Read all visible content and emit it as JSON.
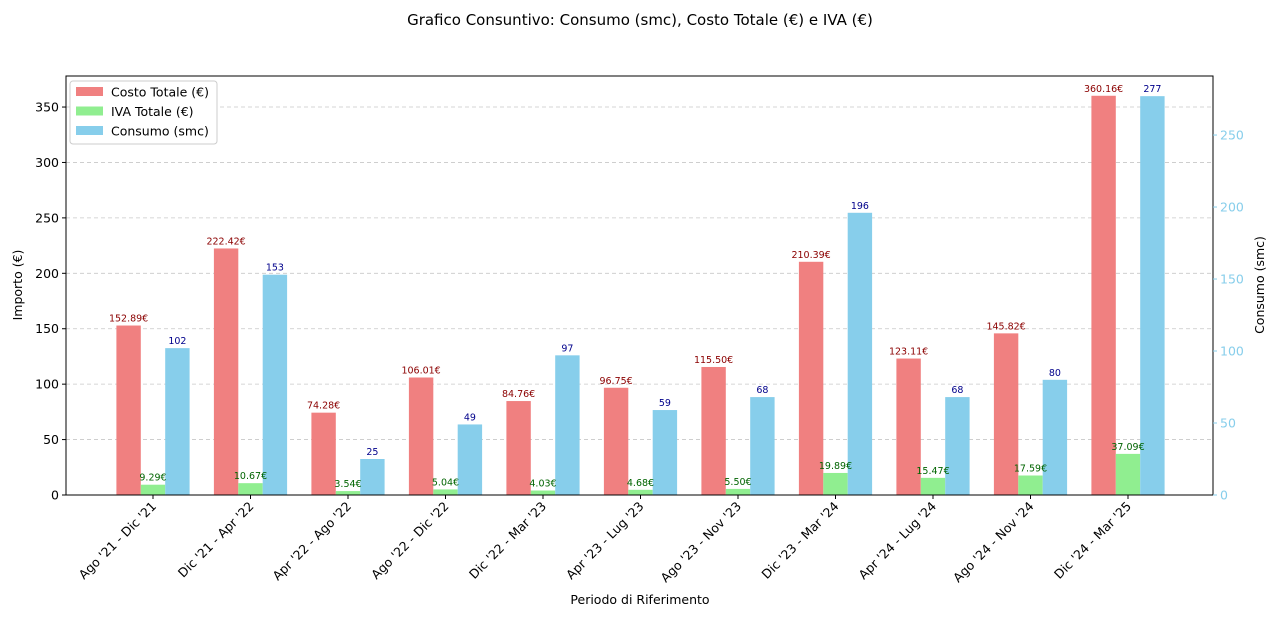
{
  "chart_data": {
    "type": "bar",
    "title": "Grafico Consuntivo: Consumo (smc), Costo Totale (€) e IVA (€)",
    "xlabel": "Periodo di Riferimento",
    "ylabel": "Importo (€)",
    "ylabel_right": "Consumo (smc)",
    "ylim": [
      0,
      378
    ],
    "ylim_right": [
      0,
      291
    ],
    "yticks": [
      0,
      50,
      100,
      150,
      200,
      250,
      300,
      350
    ],
    "yticks_right": [
      0,
      50,
      100,
      150,
      200,
      250
    ],
    "grid": "horizontal-dashed",
    "legend_position": "top-left",
    "categories": [
      "Ago '21 - Dic '21",
      "Dic '21 - Apr '22",
      "Apr '22 - Ago '22",
      "Ago '22 - Dic '22",
      "Dic '22 - Mar '23",
      "Apr '23 - Lug '23",
      "Ago '23 - Nov '23",
      "Dic '23 - Mar '24",
      "Apr '24 - Lug '24",
      "Ago '24 - Nov '24",
      "Dic '24 - Mar '25"
    ],
    "series": [
      {
        "name": "Costo Totale (€)",
        "axis": "left",
        "color": "#f08080",
        "label_color": "#8b0000",
        "values": [
          152.89,
          222.42,
          74.28,
          106.01,
          84.76,
          96.75,
          115.5,
          210.39,
          123.11,
          145.82,
          360.16
        ],
        "labels": [
          "152.89€",
          "222.42€",
          "74.28€",
          "106.01€",
          "84.76€",
          "96.75€",
          "115.50€",
          "210.39€",
          "123.11€",
          "145.82€",
          "360.16€"
        ]
      },
      {
        "name": "IVA Totale (€)",
        "axis": "left",
        "color": "#90ee90",
        "label_color": "#006400",
        "values": [
          9.29,
          10.67,
          3.54,
          5.04,
          4.03,
          4.68,
          5.5,
          19.89,
          15.47,
          17.59,
          37.09
        ],
        "labels": [
          "9.29€",
          "10.67€",
          "3.54€",
          "5.04€",
          "4.03€",
          "4.68€",
          "5.50€",
          "19.89€",
          "15.47€",
          "17.59€",
          "37.09€"
        ]
      },
      {
        "name": "Consumo (smc)",
        "axis": "right",
        "color": "#87ceeb",
        "label_color": "#00008b",
        "values": [
          102,
          153,
          25,
          49,
          97,
          59,
          68,
          196,
          68,
          80,
          277
        ],
        "labels": [
          "102",
          "153",
          "25",
          "49",
          "97",
          "59",
          "68",
          "196",
          "68",
          "80",
          "277"
        ]
      }
    ],
    "right_axis_color": "#87ceeb"
  }
}
